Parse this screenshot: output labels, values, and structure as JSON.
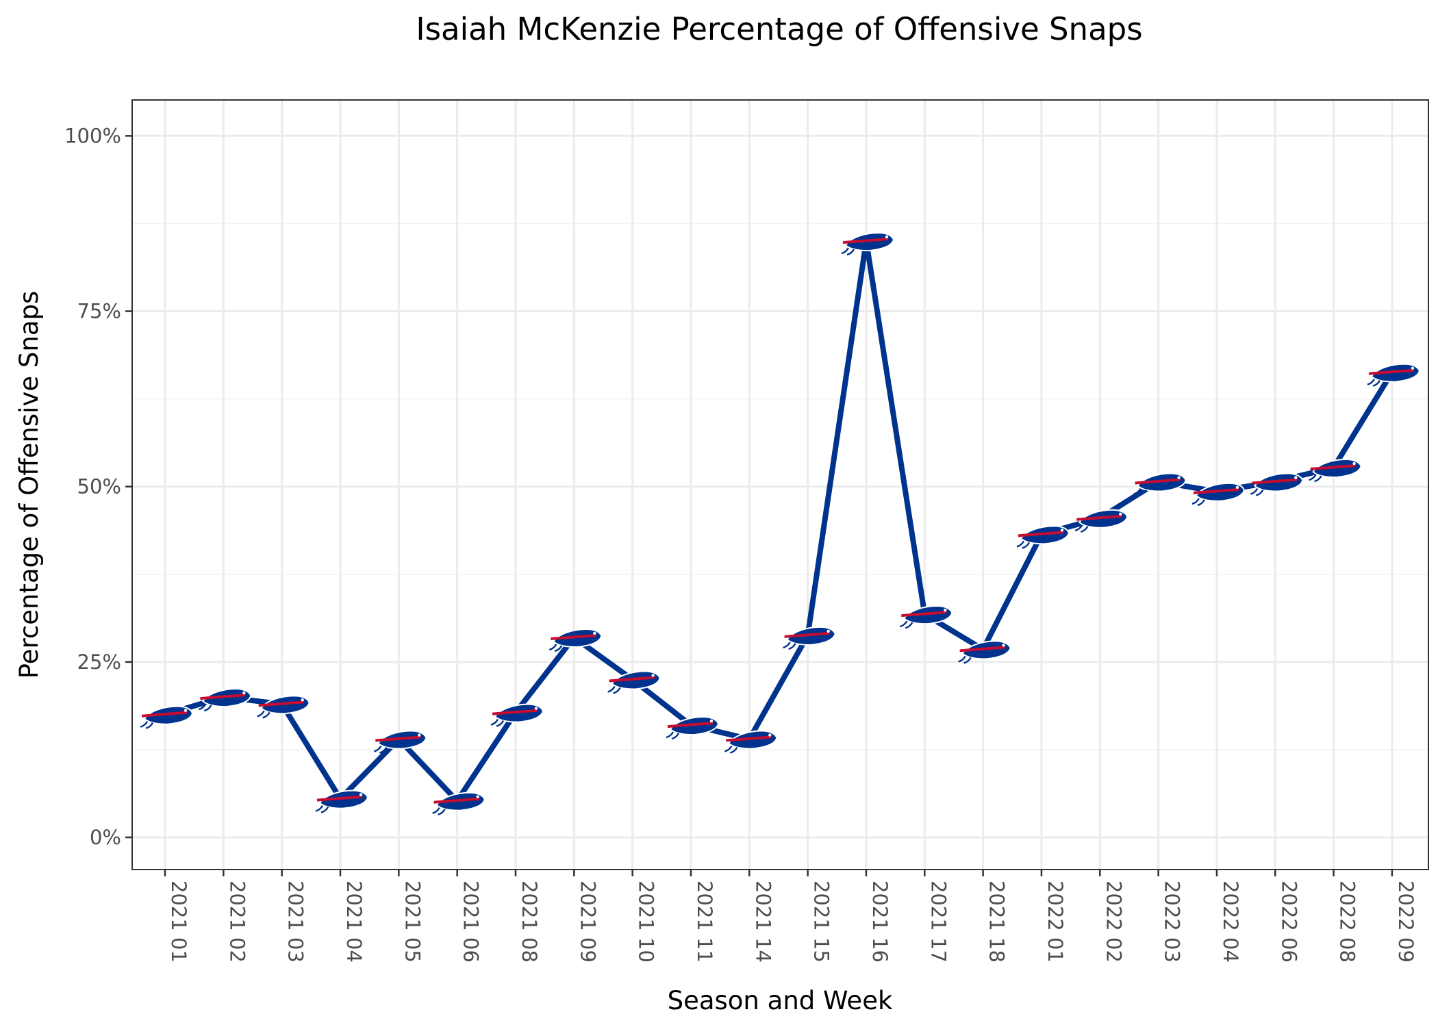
{
  "chart_data": {
    "type": "line",
    "title": "Isaiah McKenzie Percentage of Offensive Snaps",
    "xlabel": "Season and Week",
    "ylabel": "Percentage of Offensive Snaps",
    "categories": [
      "2021 01",
      "2021 02",
      "2021 03",
      "2021 04",
      "2021 05",
      "2021 06",
      "2021 08",
      "2021 09",
      "2021 10",
      "2021 11",
      "2021 14",
      "2021 15",
      "2021 16",
      "2021 17",
      "2021 18",
      "2022 01",
      "2022 02",
      "2022 03",
      "2022 04",
      "2022 06",
      "2022 08",
      "2022 09"
    ],
    "series": [
      {
        "values": [
          17.5,
          20.0,
          19.0,
          5.5,
          14.0,
          5.2,
          17.8,
          28.5,
          22.5,
          16.0,
          14.0,
          28.8,
          85.0,
          31.8,
          26.8,
          43.2,
          45.5,
          50.7,
          49.3,
          50.7,
          52.7,
          66.3
        ],
        "color": "#00338D",
        "marker": "buffalo-bills-logo-icon"
      }
    ],
    "ylim": [
      -5,
      105
    ],
    "yticks": [
      0,
      25,
      50,
      75,
      100
    ],
    "ytick_labels": [
      "0%",
      "25%",
      "50%",
      "75%",
      "100%"
    ],
    "grid": true,
    "theme": "black-and-white",
    "colors": {
      "line": "#00338D",
      "logo_blue": "#00338D",
      "logo_red": "#C60C30"
    }
  }
}
